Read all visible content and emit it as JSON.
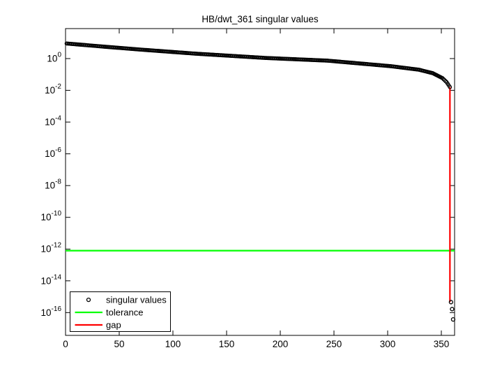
{
  "figure": {
    "background": "#ffffff",
    "axes_color": "#000000"
  },
  "chart_data": {
    "type": "scatter",
    "title": "HB/dwt_361 singular values",
    "x_axis": {
      "label": "",
      "ticks": [
        0,
        50,
        100,
        150,
        200,
        250,
        300,
        350
      ],
      "range": [
        0,
        362
      ],
      "scale": "linear"
    },
    "y_axis": {
      "label": "",
      "scale": "log10",
      "tick_exponents": [
        0,
        -2,
        -4,
        -6,
        -8,
        -10,
        -12,
        -14,
        -16
      ],
      "tick_base": "10",
      "range_log10": [
        -17.4,
        1.9
      ]
    },
    "grid": false,
    "series": [
      {
        "name": "singular values",
        "type": "scatter",
        "marker": "open-circle",
        "color": "#000000",
        "count": 361,
        "anchor_points_index_log10": [
          [
            1,
            0.95
          ],
          [
            36,
            0.75
          ],
          [
            69,
            0.57
          ],
          [
            121,
            0.31
          ],
          [
            186,
            0.04
          ],
          [
            244,
            -0.13
          ],
          [
            303,
            -0.48
          ],
          [
            329,
            -0.7
          ],
          [
            342,
            -0.92
          ],
          [
            351,
            -1.23
          ],
          [
            355,
            -1.49
          ],
          [
            358,
            -1.8
          ]
        ],
        "tail_points_index_log10": [
          [
            359,
            -15.34
          ],
          [
            360,
            -15.78
          ],
          [
            361,
            -16.43
          ]
        ],
        "note": "values between anchors decay smoothly; log10 values interpolated"
      },
      {
        "name": "tolerance",
        "type": "hline",
        "color": "#00ff00",
        "value": "8e-13",
        "value_log10": -12.1
      },
      {
        "name": "gap",
        "type": "vline",
        "color": "#ff0000",
        "at_index": 358,
        "from_log10": -1.8,
        "to_log10": -15.34
      }
    ],
    "legend": {
      "position": "bottom-left",
      "border_color": "#000000",
      "background": "#ffffff",
      "entries": [
        {
          "label": "singular values",
          "swatch": "open-circle-marker",
          "color": "#000000"
        },
        {
          "label": "tolerance",
          "swatch": "line",
          "color": "#00ff00"
        },
        {
          "label": "gap",
          "swatch": "line",
          "color": "#ff0000"
        }
      ]
    }
  }
}
